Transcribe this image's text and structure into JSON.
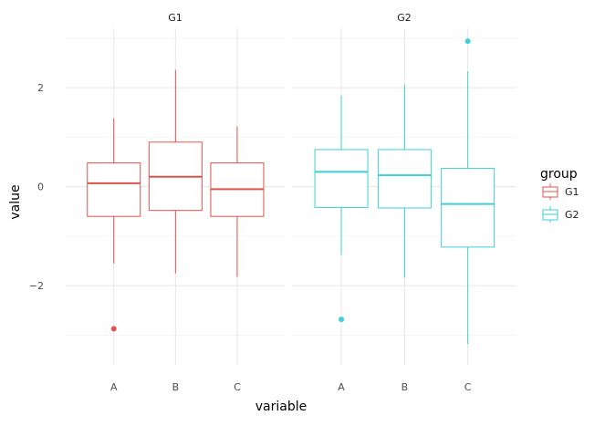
{
  "chart_data": {
    "type": "boxplot",
    "facet_field": "group",
    "facets": [
      {
        "title": "G1",
        "color": "#E0534A",
        "boxes": [
          {
            "category": "A",
            "q1": -0.6,
            "median": 0.07,
            "q3": 0.48,
            "whisker_low": -1.55,
            "whisker_high": 1.38,
            "outliers": [
              -2.87
            ]
          },
          {
            "category": "B",
            "q1": -0.48,
            "median": 0.2,
            "q3": 0.9,
            "whisker_low": -1.75,
            "whisker_high": 2.36,
            "outliers": []
          },
          {
            "category": "C",
            "q1": -0.6,
            "median": -0.05,
            "q3": 0.48,
            "whisker_low": -1.82,
            "whisker_high": 1.22,
            "outliers": []
          }
        ]
      },
      {
        "title": "G2",
        "color": "#3FCFD8",
        "boxes": [
          {
            "category": "A",
            "q1": -0.42,
            "median": 0.3,
            "q3": 0.75,
            "whisker_low": -1.38,
            "whisker_high": 1.84,
            "outliers": [
              -2.68
            ]
          },
          {
            "category": "B",
            "q1": -0.43,
            "median": 0.23,
            "q3": 0.75,
            "whisker_low": -1.84,
            "whisker_high": 2.06,
            "outliers": []
          },
          {
            "category": "C",
            "q1": -1.22,
            "median": -0.35,
            "q3": 0.37,
            "whisker_low": -3.18,
            "whisker_high": 2.33,
            "outliers": [
              2.94
            ]
          }
        ]
      }
    ],
    "categories": [
      "A",
      "B",
      "C"
    ],
    "xlabel": "variable",
    "ylabel": "value",
    "ylim": [
      -3.6,
      3.2
    ],
    "yticks": [
      -2,
      0,
      2
    ],
    "ytick_labels": [
      "−2",
      "0",
      "2"
    ],
    "legend": {
      "title": "group",
      "placement": "right",
      "entries": [
        {
          "label": "G1",
          "color": "#E0534A"
        },
        {
          "label": "G2",
          "color": "#3FCFD8"
        }
      ]
    },
    "grid": true
  }
}
